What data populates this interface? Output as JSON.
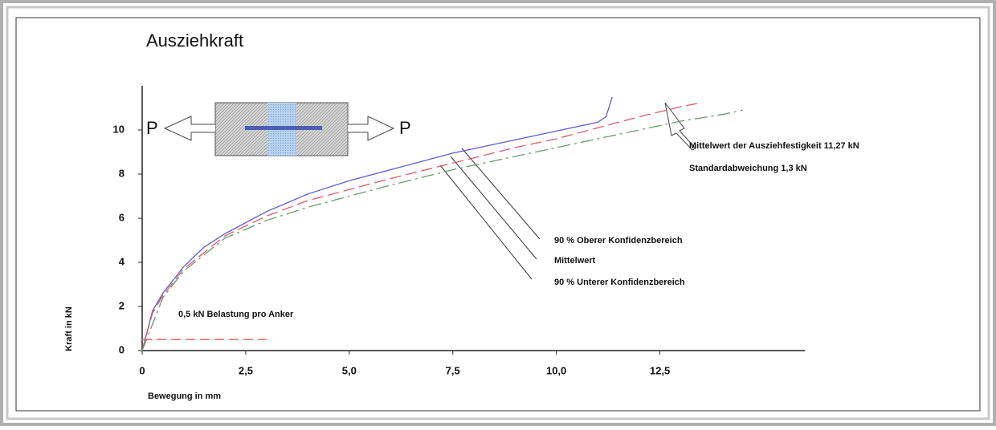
{
  "chart_data": {
    "type": "line",
    "title": "Ausziehkraft",
    "x_label": "Bewegung in mm",
    "y_label": "Kraft in kN",
    "xlim": [
      0,
      16
    ],
    "ylim": [
      0,
      12
    ],
    "xticks": [
      0,
      {
        "value": 2.5,
        "label": "2,5"
      },
      {
        "value": 5,
        "label": "5,0"
      },
      {
        "value": 7.5,
        "label": "7,5"
      },
      {
        "value": 10,
        "label": "10,0"
      },
      {
        "value": 12.5,
        "label": "12,5"
      }
    ],
    "yticks": [
      0,
      2,
      4,
      6,
      8,
      10
    ],
    "series": [
      {
        "name": "90 % Oberer Konfidenzbereich",
        "color": "#5b5bc8",
        "line_style": "solid",
        "x": [
          0,
          0.25,
          0.5,
          1,
          1.5,
          2,
          3,
          4,
          5,
          6,
          7,
          7.5,
          8,
          9,
          10,
          11,
          11.2,
          11.35
        ],
        "values": [
          0,
          1.8,
          2.6,
          3.8,
          4.7,
          5.3,
          6.3,
          7.1,
          7.7,
          8.2,
          8.7,
          8.95,
          9.15,
          9.55,
          9.95,
          10.35,
          10.6,
          11.5
        ]
      },
      {
        "name": "Mittelwert",
        "color": "#e05a6a",
        "line_style": "dashed",
        "x": [
          0,
          0.25,
          0.5,
          1,
          2,
          3,
          4,
          5,
          6,
          7.5,
          9,
          10,
          11,
          12,
          13,
          13.4
        ],
        "values": [
          0,
          1.7,
          2.5,
          3.7,
          5.2,
          6.1,
          6.8,
          7.3,
          7.8,
          8.5,
          9.2,
          9.6,
          10.1,
          10.6,
          11.05,
          11.2
        ]
      },
      {
        "name": "90 % Unterer Konfidenzbereich",
        "color": "#6a9a6a",
        "line_style": "dashdot",
        "x": [
          0,
          0.5,
          1,
          2,
          3,
          4,
          5,
          6,
          7.5,
          9,
          10,
          11,
          12,
          13,
          14,
          14.5
        ],
        "values": [
          0,
          2.4,
          3.6,
          5.1,
          5.9,
          6.5,
          7.0,
          7.5,
          8.2,
          8.8,
          9.2,
          9.6,
          10.0,
          10.4,
          10.7,
          10.9
        ]
      }
    ],
    "hline": {
      "y": 0.5,
      "x": [
        0,
        3
      ],
      "label": "0,5 kN Belastung pro Anker",
      "color": "#e07060"
    },
    "annotations": [
      "Mittelwert der Ausziehfestigkeit 11,27 kN",
      "Standardabweichung 1,3 kN"
    ],
    "inset": {
      "left_label": "P",
      "right_label": "P"
    }
  }
}
